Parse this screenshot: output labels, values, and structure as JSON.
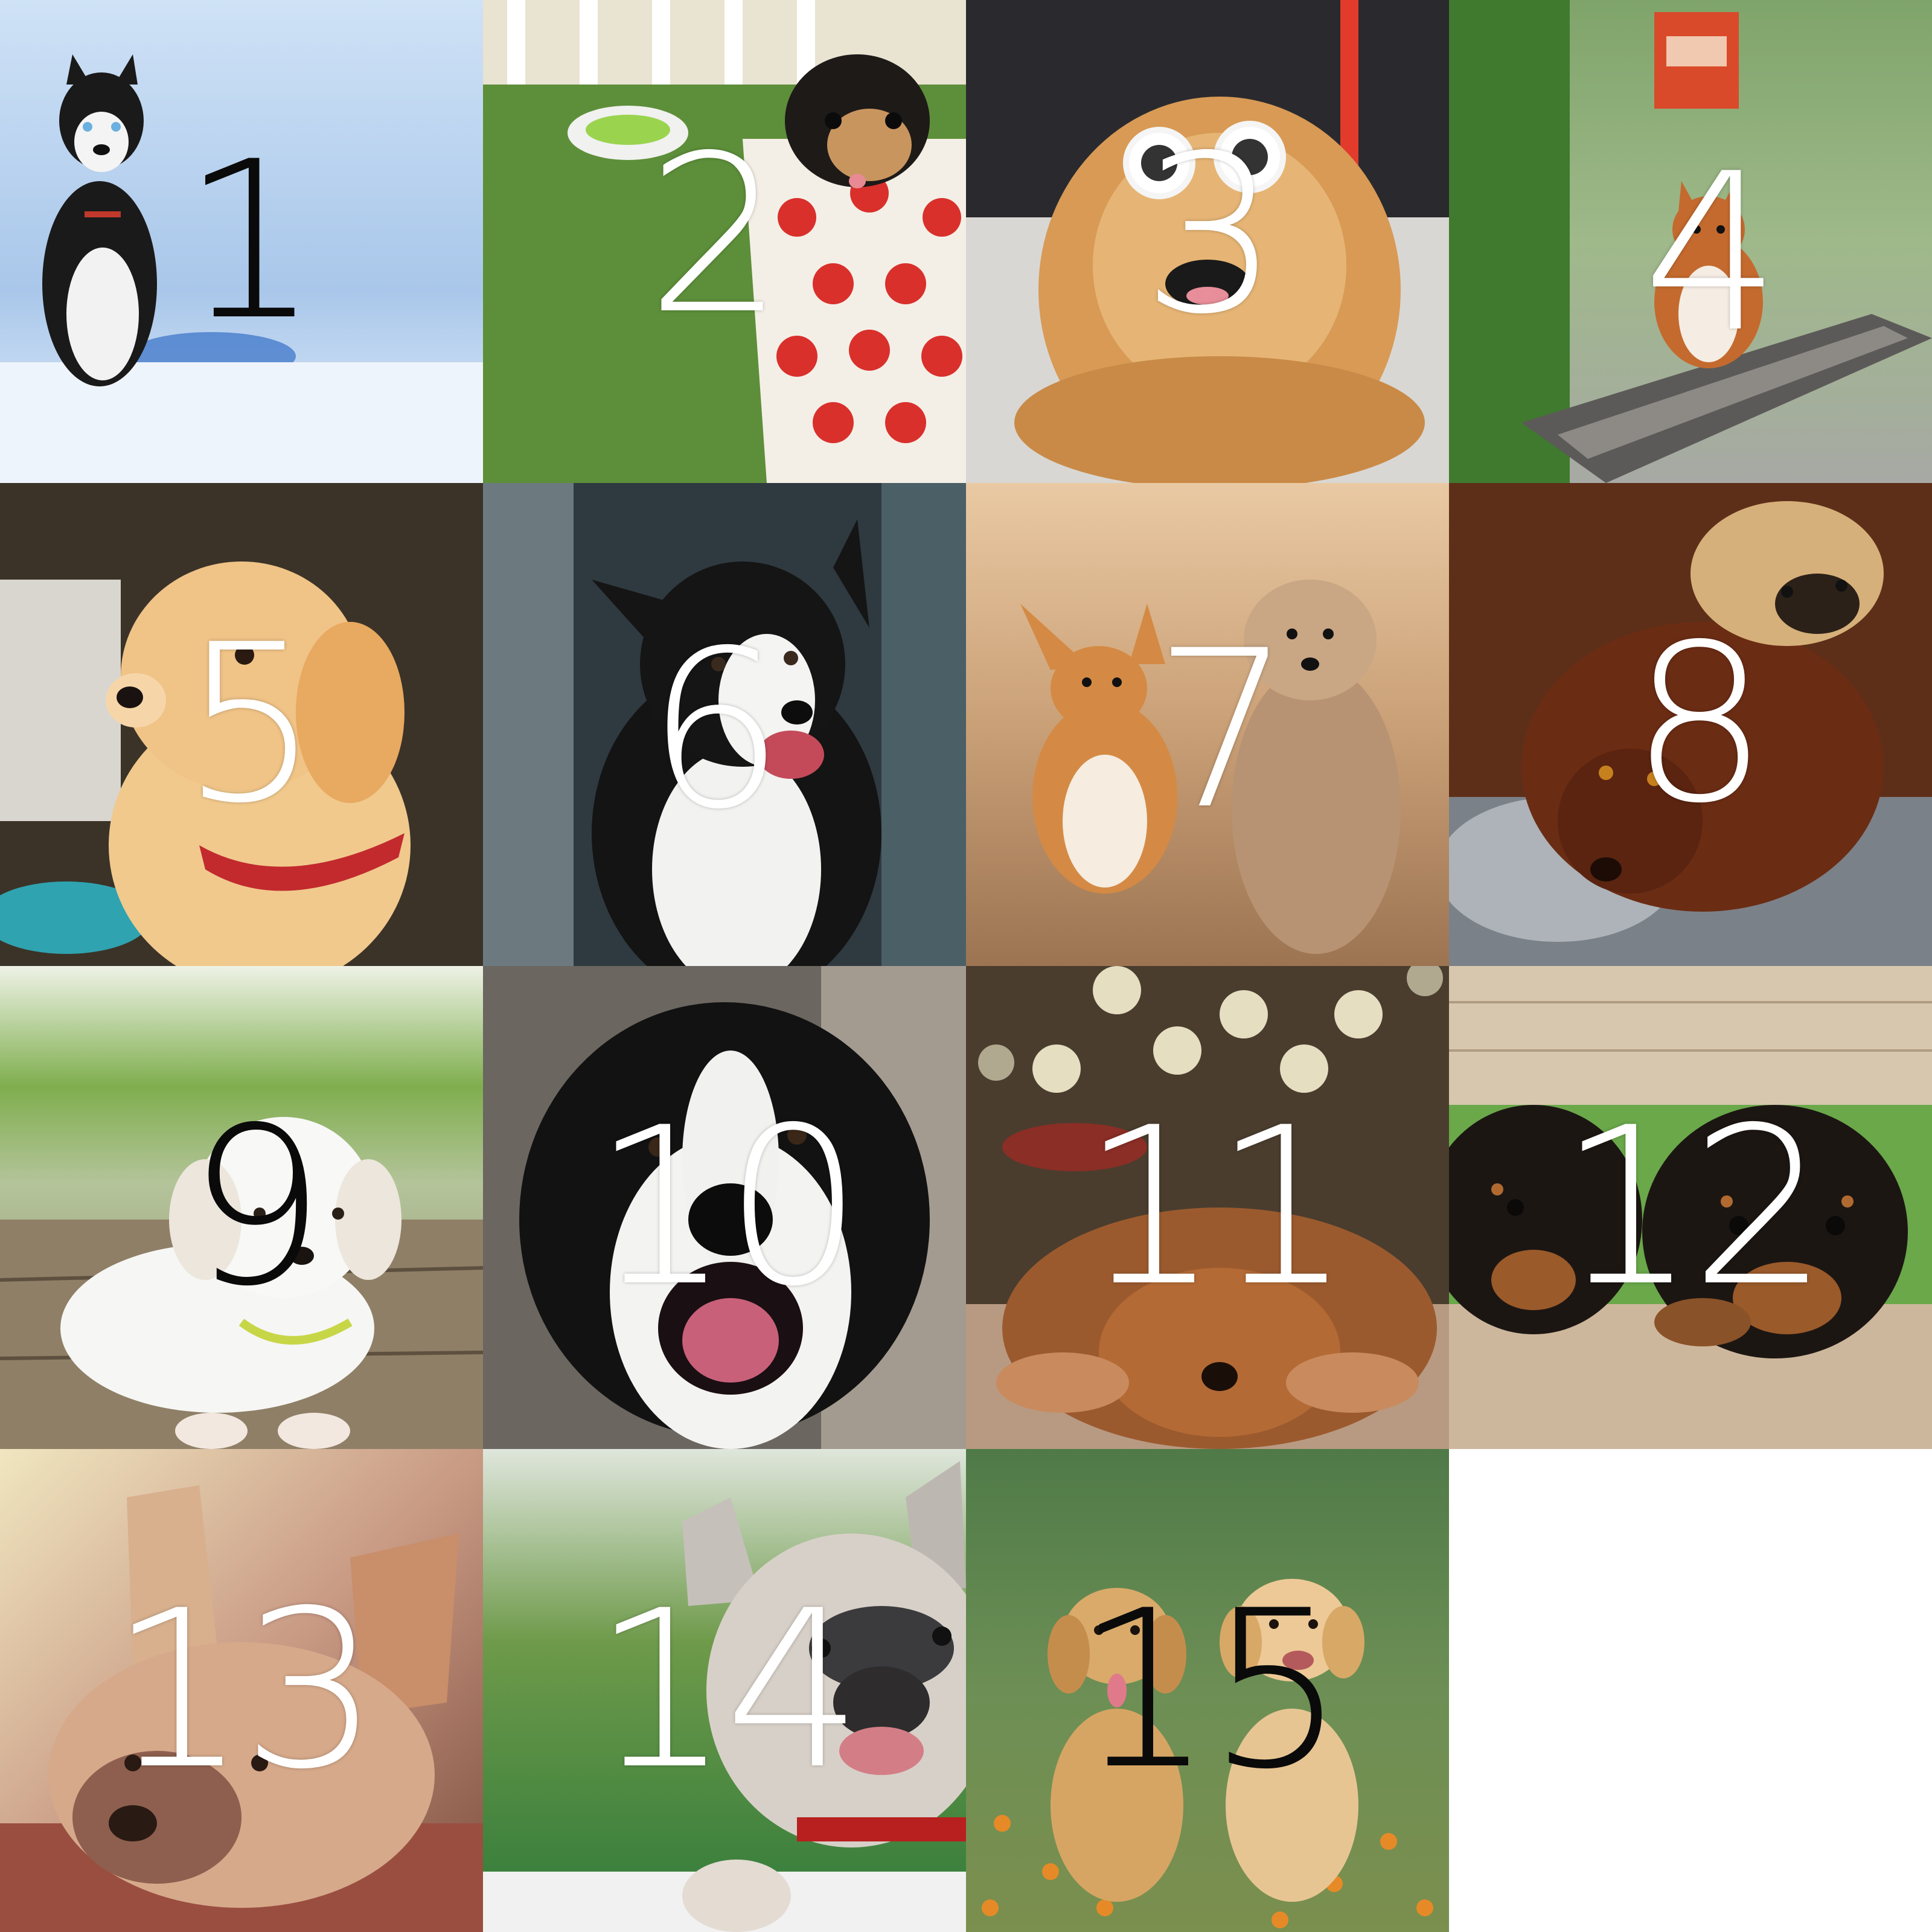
{
  "tiles": [
    {
      "label": "1",
      "subject": "husky-puppy-on-snow",
      "label_color": "#000000"
    },
    {
      "label": "2",
      "subject": "chihuahua-puppy-in-polka-dot-cup",
      "label_color": "#ffffff"
    },
    {
      "label": "3",
      "subject": "chow-chow-with-sunglasses",
      "label_color": "#ffffff"
    },
    {
      "label": "4",
      "subject": "corgi-on-railway-tracks",
      "label_color": "#ffffff"
    },
    {
      "label": "5",
      "subject": "golden-retriever-puppy-red-collar",
      "label_color": "#ffffff"
    },
    {
      "label": "6",
      "subject": "border-collie-smiling",
      "label_color": "#ffffff"
    },
    {
      "label": "7",
      "subject": "corgi-and-terrier-walking",
      "label_color": "#ffffff"
    },
    {
      "label": "8",
      "subject": "brown-spaniel-and-pug-on-blanket",
      "label_color": "#ffffff"
    },
    {
      "label": "9",
      "subject": "white-puppy-on-wooden-deck",
      "label_color": "#000000"
    },
    {
      "label": "10",
      "subject": "border-collie-closeup",
      "label_color": "#ffffff"
    },
    {
      "label": "11",
      "subject": "sleeping-golden-puppy-bokeh",
      "label_color": "#ffffff"
    },
    {
      "label": "12",
      "subject": "two-rottweiler-puppies-on-fence",
      "label_color": "#ffffff"
    },
    {
      "label": "13",
      "subject": "french-bulldog-lying-down",
      "label_color": "#ffffff"
    },
    {
      "label": "14",
      "subject": "french-bulldog-peeking",
      "label_color": "#ffffff"
    },
    {
      "label": "15",
      "subject": "two-golden-puppies-in-flowers",
      "label_color": "#000000"
    }
  ]
}
